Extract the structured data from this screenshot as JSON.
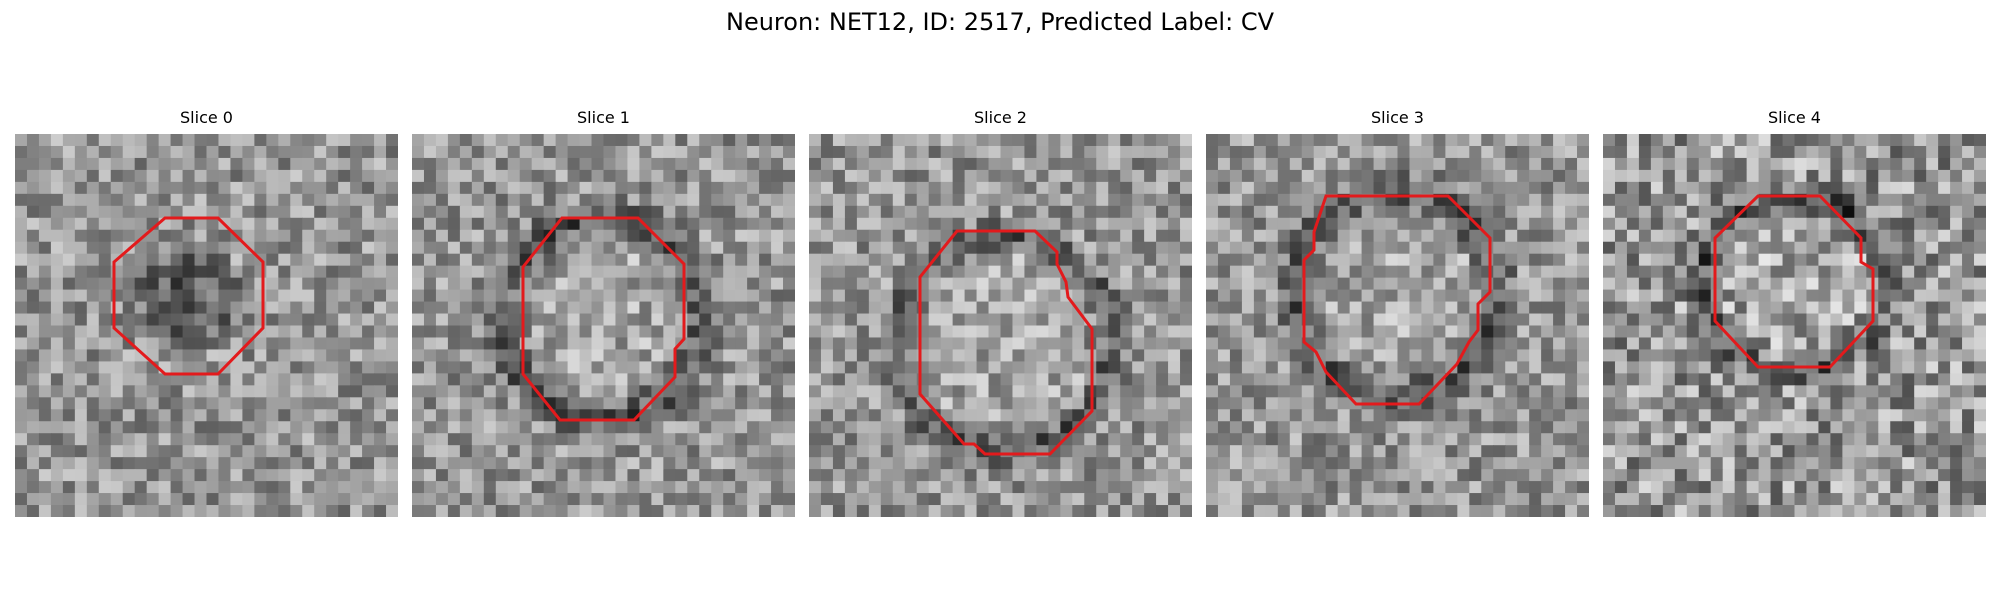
{
  "figure": {
    "title": "Neuron: NET12, ID: 2517, Predicted Label: CV"
  },
  "panels": [
    {
      "title": "Slice 0"
    },
    {
      "title": "Slice 1"
    },
    {
      "title": "Slice 2"
    },
    {
      "title": "Slice 3"
    },
    {
      "title": "Slice 4"
    }
  ],
  "colors": {
    "contour": "#e31a1c"
  }
}
